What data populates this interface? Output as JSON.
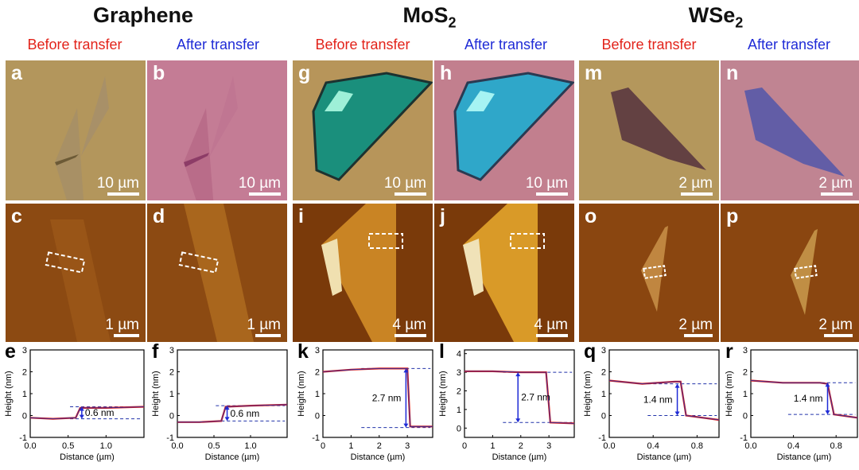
{
  "groups": [
    {
      "title_main": "Graphene",
      "title_sub": "",
      "before": "Before transfer",
      "after": "After transfer"
    },
    {
      "title_main": "MoS",
      "title_sub": "2",
      "before": "Before transfer",
      "after": "After transfer"
    },
    {
      "title_main": "WSe",
      "title_sub": "2",
      "before": "Before transfer",
      "after": "After transfer"
    }
  ],
  "optical_panels": [
    {
      "letter": "a",
      "scale": "10 µm",
      "color": "#b3965c"
    },
    {
      "letter": "b",
      "scale": "10 µm",
      "color": "#c47c95"
    },
    {
      "letter": "g",
      "scale": "10 µm",
      "color": "#b7955a"
    },
    {
      "letter": "h",
      "scale": "10 µm",
      "color": "#c27f8e"
    },
    {
      "letter": "m",
      "scale": "2 µm",
      "color": "#b4975c"
    },
    {
      "letter": "n",
      "scale": "2 µm",
      "color": "#c08492"
    }
  ],
  "afm_panels": [
    {
      "letter": "c",
      "scale": "1 µm"
    },
    {
      "letter": "d",
      "scale": "1 µm"
    },
    {
      "letter": "i",
      "scale": "4 µm"
    },
    {
      "letter": "j",
      "scale": "4 µm"
    },
    {
      "letter": "o",
      "scale": "2 µm"
    },
    {
      "letter": "p",
      "scale": "2 µm"
    }
  ],
  "chart_data": [
    {
      "letter": "e",
      "type": "line",
      "xlabel": "Distance (µm)",
      "ylabel": "Height (nm)",
      "xlim": [
        0,
        1.5
      ],
      "ylim": [
        -1,
        3
      ],
      "xticks": [
        0.0,
        0.5,
        1.0
      ],
      "xtick_labels": [
        "0.0",
        "0.5",
        "1.0"
      ],
      "yticks": [
        -1,
        0,
        1,
        2,
        3
      ],
      "series": [
        {
          "values": [
            [
              0,
              -0.1
            ],
            [
              0.3,
              -0.15
            ],
            [
              0.6,
              -0.1
            ],
            [
              0.66,
              0.35
            ],
            [
              1.0,
              0.35
            ],
            [
              1.5,
              0.4
            ]
          ]
        }
      ],
      "annotation": "0.6 nm",
      "step_x": 0.68,
      "step_low": -0.15,
      "step_high": 0.4
    },
    {
      "letter": "f",
      "type": "line",
      "xlabel": "Distance (µm)",
      "ylabel": "Height (nm)",
      "xlim": [
        0,
        1.5
      ],
      "ylim": [
        -1,
        3
      ],
      "xticks": [
        0.0,
        0.5,
        1.0
      ],
      "xtick_labels": [
        "0.0",
        "0.5",
        "1.0"
      ],
      "yticks": [
        -1,
        0,
        1,
        2,
        3
      ],
      "series": [
        {
          "values": [
            [
              0,
              -0.3
            ],
            [
              0.3,
              -0.3
            ],
            [
              0.6,
              -0.25
            ],
            [
              0.66,
              0.4
            ],
            [
              1.0,
              0.45
            ],
            [
              1.5,
              0.5
            ]
          ]
        }
      ],
      "annotation": "0.6 nm",
      "step_x": 0.68,
      "step_low": -0.25,
      "step_high": 0.45
    },
    {
      "letter": "k",
      "type": "line",
      "xlabel": "Distance (µm)",
      "ylabel": "Height (nm)",
      "xlim": [
        0,
        3.9
      ],
      "ylim": [
        -1,
        3
      ],
      "xticks": [
        0,
        1,
        2,
        3
      ],
      "xtick_labels": [
        "0",
        "1",
        "2",
        "3"
      ],
      "yticks": [
        -1,
        0,
        1,
        2,
        3
      ],
      "series": [
        {
          "values": [
            [
              0,
              2.0
            ],
            [
              1.0,
              2.1
            ],
            [
              2.0,
              2.15
            ],
            [
              3.0,
              2.15
            ],
            [
              3.1,
              -0.5
            ],
            [
              3.9,
              -0.5
            ]
          ]
        }
      ],
      "annotation": "2.7 nm",
      "step_x": 2.95,
      "step_low": -0.55,
      "step_high": 2.15
    },
    {
      "letter": "l",
      "type": "line",
      "xlabel": "Distance (µm)",
      "ylabel": "Height (nm)",
      "xlim": [
        0,
        3.9
      ],
      "ylim": [
        -0.5,
        4.2
      ],
      "xticks": [
        0,
        1,
        2,
        3
      ],
      "xtick_labels": [
        "0",
        "1",
        "2",
        "3"
      ],
      "yticks": [
        0,
        1,
        2,
        3,
        4
      ],
      "series": [
        {
          "values": [
            [
              0,
              3.05
            ],
            [
              1.0,
              3.05
            ],
            [
              2.0,
              3.0
            ],
            [
              2.9,
              3.0
            ],
            [
              3.05,
              0.3
            ],
            [
              3.9,
              0.25
            ]
          ]
        }
      ],
      "annotation": "2.7 nm",
      "step_x": 1.9,
      "step_low": 0.3,
      "step_high": 3.0
    },
    {
      "letter": "q",
      "type": "line",
      "xlabel": "Distance (µm)",
      "ylabel": "Height (nm)",
      "xlim": [
        0,
        1.0
      ],
      "ylim": [
        -1,
        3
      ],
      "xticks": [
        0.0,
        0.4,
        0.8
      ],
      "xtick_labels": [
        "0.0",
        "0.4",
        "0.8"
      ],
      "yticks": [
        -1,
        0,
        1,
        2,
        3
      ],
      "series": [
        {
          "values": [
            [
              0,
              1.6
            ],
            [
              0.3,
              1.45
            ],
            [
              0.6,
              1.55
            ],
            [
              0.65,
              1.55
            ],
            [
              0.7,
              0.0
            ],
            [
              1.0,
              -0.2
            ]
          ]
        }
      ],
      "annotation": "1.4 nm",
      "step_x": 0.62,
      "step_low": 0.0,
      "step_high": 1.45
    },
    {
      "letter": "r",
      "type": "line",
      "xlabel": "Distance (µm)",
      "ylabel": "Height (nm)",
      "xlim": [
        0,
        1.0
      ],
      "ylim": [
        -1,
        3
      ],
      "xticks": [
        0.0,
        0.4,
        0.8
      ],
      "xtick_labels": [
        "0.0",
        "0.4",
        "0.8"
      ],
      "yticks": [
        -1,
        0,
        1,
        2,
        3
      ],
      "series": [
        {
          "values": [
            [
              0,
              1.6
            ],
            [
              0.3,
              1.5
            ],
            [
              0.65,
              1.5
            ],
            [
              0.72,
              1.45
            ],
            [
              0.78,
              0.05
            ],
            [
              1.0,
              -0.1
            ]
          ]
        }
      ],
      "annotation": "1.4 nm",
      "step_x": 0.72,
      "step_low": 0.05,
      "step_high": 1.5
    }
  ]
}
